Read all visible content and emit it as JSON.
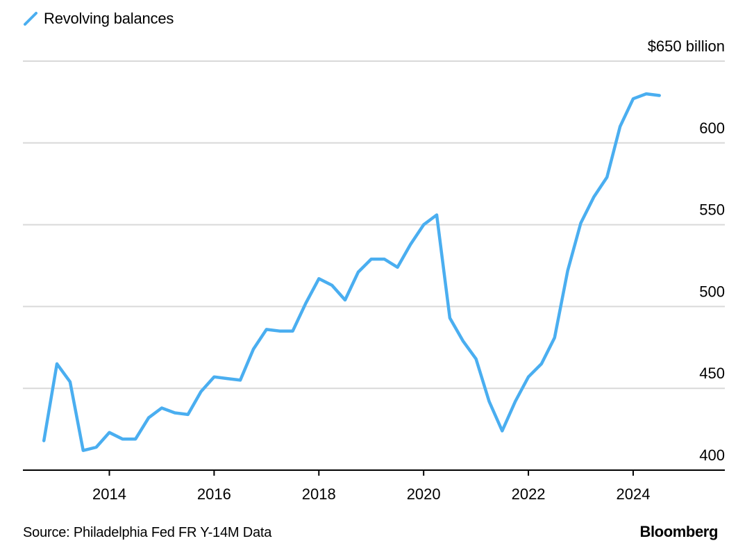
{
  "legend": {
    "label": "Revolving balances"
  },
  "footer": {
    "source": "Source: Philadelphia Fed FR Y-14M Data",
    "brand": "Bloomberg"
  },
  "colors": {
    "line": "#4aaef0",
    "grid": "#d9d9d9",
    "axis": "#000000"
  },
  "chart_data": {
    "type": "line",
    "title": "",
    "xlabel": "",
    "ylabel": "",
    "y_unit_label": "$650 billion",
    "y_tick_values": [
      400,
      450,
      500,
      550,
      600,
      650
    ],
    "y_tick_labels": [
      "400",
      "450",
      "500",
      "550",
      "600",
      "$650 billion"
    ],
    "x_tick_labels": [
      "2014",
      "2016",
      "2018",
      "2020",
      "2022",
      "2024"
    ],
    "x_tick_values": [
      2014,
      2016,
      2018,
      2020,
      2022,
      2024
    ],
    "xlim": [
      2012.35,
      2025.75
    ],
    "ylim": [
      400,
      650
    ],
    "grid": true,
    "legend_position": "top-left",
    "series": [
      {
        "name": "Revolving balances",
        "x": [
          2012.75,
          2013.0,
          2013.25,
          2013.5,
          2013.75,
          2014.0,
          2014.25,
          2014.5,
          2014.75,
          2015.0,
          2015.25,
          2015.5,
          2015.75,
          2016.0,
          2016.25,
          2016.5,
          2016.75,
          2017.0,
          2017.25,
          2017.5,
          2017.75,
          2018.0,
          2018.25,
          2018.5,
          2018.75,
          2019.0,
          2019.25,
          2019.5,
          2019.75,
          2020.0,
          2020.25,
          2020.5,
          2020.75,
          2021.0,
          2021.25,
          2021.5,
          2021.75,
          2022.0,
          2022.25,
          2022.5,
          2022.75,
          2023.0,
          2023.25,
          2023.5,
          2023.75,
          2024.0,
          2024.25,
          2024.5
        ],
        "values": [
          418,
          465,
          454,
          412,
          414,
          423,
          419,
          419,
          432,
          438,
          435,
          434,
          448,
          457,
          456,
          455,
          474,
          486,
          485,
          485,
          502,
          517,
          513,
          504,
          521,
          529,
          529,
          524,
          538,
          550,
          556,
          493,
          479,
          468,
          442,
          424,
          442,
          457,
          465,
          481,
          522,
          551,
          567,
          579,
          610,
          627,
          630,
          629
        ]
      }
    ]
  }
}
